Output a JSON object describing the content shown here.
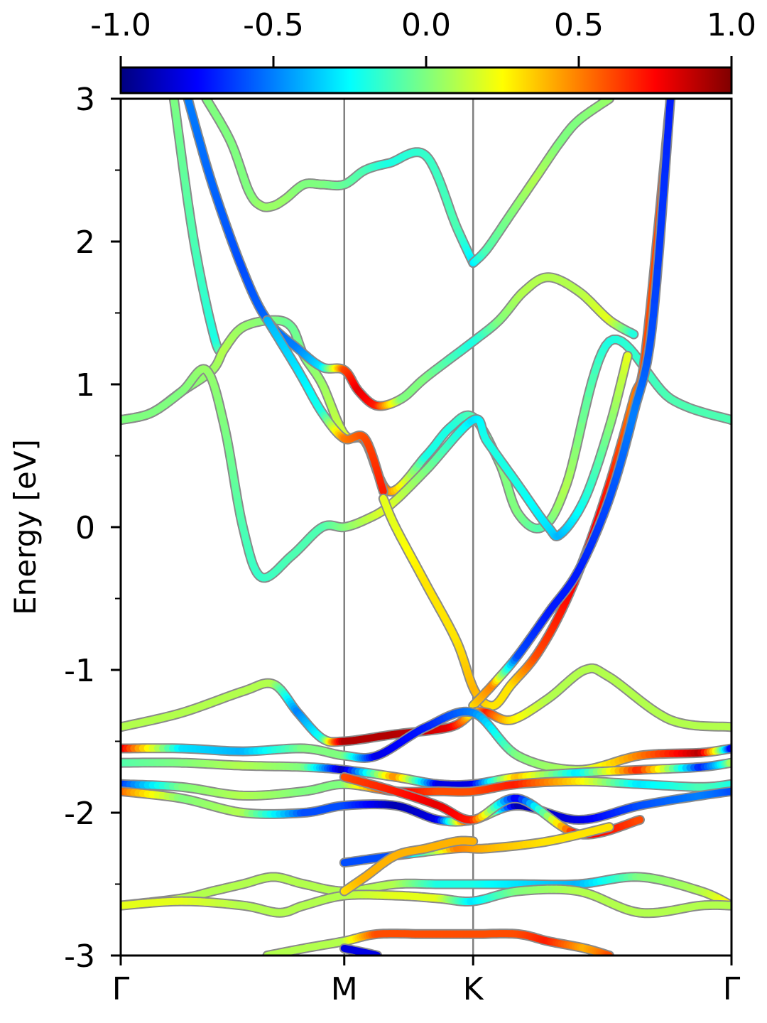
{
  "chart_data": {
    "type": "line",
    "ylabel": "Energy [eV]",
    "xlabel": "",
    "title": "",
    "ylim": [
      -3,
      3
    ],
    "y_ticks": [
      "-3",
      "-2",
      "-1",
      "0",
      "1",
      "2",
      "3"
    ],
    "x_ticks": [
      {
        "label": "Γ",
        "k": 0.0
      },
      {
        "label": "M",
        "k": 0.366
      },
      {
        "label": "K",
        "k": 0.577
      },
      {
        "label": "Γ",
        "k": 1.0
      }
    ],
    "vertical_lines_at_k": [
      0.366,
      0.577
    ],
    "colorbar": {
      "colormap": "jet",
      "range": [
        -1.0,
        1.0
      ],
      "ticks": [
        "-1.0",
        "-0.5",
        "0.0",
        "0.5",
        "1.0"
      ],
      "position": "top"
    },
    "color_stops": [
      "#00007f",
      "#0000ff",
      "#007fff",
      "#00ffff",
      "#7fff7f",
      "#ffff00",
      "#ff7f00",
      "#ff0000",
      "#7f0000"
    ],
    "series": [
      {
        "x": [
          0.087,
          0.12,
          0.155,
          0.17
        ],
        "y": [
          3.0,
          2.0,
          1.3,
          1.25
        ],
        "c": [
          0.0,
          -0.1,
          -0.2,
          0.1
        ]
      },
      {
        "x": [
          0.0,
          0.05,
          0.1,
          0.15,
          0.17,
          0.2,
          0.25,
          0.28,
          0.3,
          0.33,
          0.366,
          0.4,
          0.44,
          0.5,
          0.54,
          0.577,
          0.62,
          0.65,
          0.69,
          0.73,
          0.8,
          0.9,
          1.0
        ],
        "y": [
          0.75,
          0.8,
          0.95,
          1.1,
          1.25,
          1.4,
          1.45,
          1.4,
          1.2,
          1.0,
          0.65,
          0.6,
          0.25,
          0.5,
          0.7,
          0.77,
          0.45,
          0.1,
          0.0,
          0.3,
          1.3,
          0.9,
          0.75
        ],
        "c": [
          0.0,
          0.0,
          0.0,
          0.05,
          0.1,
          0.05,
          0.0,
          -0.05,
          0.0,
          0.05,
          0.15,
          0.6,
          0.5,
          -0.2,
          -0.2,
          -0.1,
          0.0,
          0.0,
          -0.1,
          0.1,
          -0.2,
          -0.1,
          -0.1
        ]
      },
      {
        "x": [
          0.0,
          0.05,
          0.1,
          0.14,
          0.17,
          0.2,
          0.23,
          0.28,
          0.33,
          0.366,
          0.4,
          0.44,
          0.5,
          0.577,
          0.6,
          0.65,
          0.7,
          0.72,
          0.76,
          0.8,
          0.83
        ],
        "y": [
          0.75,
          0.8,
          0.95,
          1.1,
          0.7,
          0.0,
          -0.35,
          -0.2,
          0.0,
          0.0,
          0.05,
          0.15,
          0.4,
          0.75,
          0.6,
          0.3,
          0.0,
          -0.05,
          0.2,
          0.7,
          1.2
        ],
        "c": [
          0.0,
          0.0,
          0.0,
          0.05,
          0.0,
          -0.1,
          -0.15,
          -0.1,
          -0.1,
          0.0,
          0.1,
          0.2,
          0.0,
          -0.3,
          -0.2,
          -0.2,
          -0.3,
          -0.4,
          -0.2,
          0.0,
          0.2
        ]
      },
      {
        "x": [
          0.14,
          0.18,
          0.21,
          0.23,
          0.25,
          0.27,
          0.3,
          0.33,
          0.366,
          0.4,
          0.44,
          0.5,
          0.55,
          0.577
        ],
        "y": [
          3.0,
          2.7,
          2.35,
          2.25,
          2.25,
          2.3,
          2.4,
          2.4,
          2.4,
          2.5,
          2.55,
          2.6,
          2.1,
          1.85
        ],
        "c": [
          0.0,
          0.0,
          0.0,
          0.05,
          0.05,
          0.05,
          0.0,
          0.0,
          -0.05,
          -0.1,
          -0.2,
          -0.15,
          -0.1,
          -0.3
        ]
      },
      {
        "x": [
          0.577,
          0.6,
          0.64,
          0.68,
          0.72,
          0.75,
          0.8
        ],
        "y": [
          1.85,
          1.95,
          2.2,
          2.45,
          2.7,
          2.85,
          3.0
        ],
        "c": [
          -0.3,
          -0.1,
          0.0,
          0.1,
          0.0,
          0.0,
          0.05
        ]
      },
      {
        "x": [
          0.11,
          0.15,
          0.2,
          0.24,
          0.29,
          0.33,
          0.366,
          0.39,
          0.42,
          0.46,
          0.5,
          0.577,
          0.62,
          0.66,
          0.7,
          0.75,
          0.8,
          0.84
        ],
        "y": [
          3.0,
          2.4,
          1.8,
          1.45,
          1.25,
          1.12,
          1.1,
          0.95,
          0.85,
          0.9,
          1.05,
          1.3,
          1.45,
          1.65,
          1.75,
          1.65,
          1.45,
          1.35
        ],
        "c": [
          -0.5,
          -0.55,
          -0.6,
          -0.55,
          -0.5,
          -0.3,
          0.6,
          0.8,
          0.7,
          0.0,
          0.0,
          -0.2,
          0.0,
          0.1,
          0.1,
          0.1,
          0.2,
          -0.2
        ]
      },
      {
        "x": [
          0.24,
          0.29,
          0.33,
          0.366,
          0.4,
          0.43
        ],
        "y": [
          1.45,
          1.1,
          0.8,
          0.62,
          0.62,
          0.25
        ],
        "c": [
          -0.4,
          -0.3,
          -0.2,
          0.5,
          0.6,
          0.7
        ]
      },
      {
        "x": [
          0.43,
          0.45,
          0.5,
          0.55,
          0.58,
          0.61,
          0.64,
          0.68,
          0.72,
          0.76,
          0.8,
          0.84,
          0.86,
          0.9
        ],
        "y": [
          0.2,
          0.0,
          -0.4,
          -0.8,
          -1.15,
          -1.25,
          -1.1,
          -0.9,
          -0.6,
          -0.2,
          0.3,
          0.9,
          1.25,
          3.0
        ],
        "c": [
          0.2,
          0.2,
          0.3,
          0.3,
          0.4,
          0.3,
          0.3,
          0.6,
          0.7,
          0.8,
          0.7,
          0.5,
          0.6,
          0.6
        ]
      },
      {
        "x": [
          0.577,
          0.61,
          0.65,
          0.7,
          0.75,
          0.8,
          0.84,
          0.87,
          0.9
        ],
        "y": [
          -1.25,
          -1.1,
          -0.9,
          -0.6,
          -0.3,
          0.2,
          0.8,
          1.4,
          3.0
        ],
        "c": [
          0.3,
          0.5,
          -0.6,
          -0.7,
          -0.7,
          -0.6,
          -0.5,
          -0.6,
          -0.7
        ]
      },
      {
        "x": [
          0.0,
          0.1,
          0.2,
          0.25,
          0.29,
          0.33,
          0.366,
          0.45,
          0.54,
          0.577,
          0.6,
          0.64,
          0.7,
          0.76,
          0.8,
          0.9,
          1.0
        ],
        "y": [
          -1.4,
          -1.3,
          -1.15,
          -1.1,
          -1.3,
          -1.48,
          -1.5,
          -1.45,
          -1.4,
          -1.3,
          -1.3,
          -1.35,
          -1.2,
          -1.0,
          -1.05,
          -1.35,
          -1.4
        ],
        "c": [
          0.1,
          0.1,
          0.1,
          0.1,
          -0.5,
          -0.2,
          0.9,
          0.9,
          0.8,
          0.2,
          0.7,
          0.3,
          0.1,
          0.1,
          0.1,
          0.1,
          0.1
        ]
      },
      {
        "x": [
          0.0,
          0.1,
          0.2,
          0.3,
          0.366,
          0.42,
          0.5,
          0.577,
          0.65,
          0.75,
          0.85,
          0.95,
          1.0
        ],
        "y": [
          -1.55,
          -1.55,
          -1.57,
          -1.55,
          -1.6,
          -1.6,
          -1.4,
          -1.3,
          -1.6,
          -1.7,
          -1.6,
          -1.58,
          -1.55
        ],
        "c": [
          0.9,
          -0.3,
          -0.4,
          0.0,
          0.0,
          -0.8,
          -0.7,
          -0.5,
          0.0,
          0.1,
          0.5,
          0.9,
          -0.8
        ]
      },
      {
        "x": [
          0.0,
          0.1,
          0.2,
          0.3,
          0.366,
          0.45,
          0.52,
          0.577,
          0.65,
          0.75,
          0.85,
          0.95,
          1.0
        ],
        "y": [
          -1.65,
          -1.65,
          -1.67,
          -1.68,
          -1.7,
          -1.75,
          -1.8,
          -1.8,
          -1.75,
          -1.72,
          -1.7,
          -1.68,
          -1.65
        ],
        "c": [
          -0.1,
          0.0,
          0.1,
          0.0,
          -0.9,
          0.5,
          -0.8,
          -0.8,
          0.4,
          -0.3,
          0.7,
          -0.7,
          0.1
        ]
      },
      {
        "x": [
          0.0,
          0.1,
          0.2,
          0.3,
          0.366,
          0.45,
          0.52,
          0.577,
          0.65,
          0.75,
          0.85,
          0.95,
          1.0
        ],
        "y": [
          -1.8,
          -1.82,
          -1.88,
          -1.85,
          -1.8,
          -1.85,
          -1.85,
          -1.85,
          -1.8,
          -1.78,
          -1.8,
          -1.82,
          -1.8
        ],
        "c": [
          -0.7,
          0.0,
          0.1,
          0.0,
          0.0,
          0.8,
          0.6,
          0.6,
          0.7,
          0.3,
          -0.3,
          -0.1,
          -0.2
        ]
      },
      {
        "x": [
          0.0,
          0.1,
          0.2,
          0.3,
          0.366,
          0.45,
          0.52,
          0.577,
          0.65,
          0.75,
          0.85,
          0.95,
          1.0
        ],
        "y": [
          -1.85,
          -1.9,
          -2.0,
          -2.0,
          -1.95,
          -1.95,
          -2.05,
          -2.05,
          -1.95,
          -2.05,
          -1.95,
          -1.88,
          -1.85
        ],
        "c": [
          0.6,
          0.0,
          0.1,
          -0.6,
          -0.6,
          -0.9,
          -0.8,
          0.9,
          -0.9,
          -0.8,
          -0.6,
          -0.5,
          -0.6
        ]
      },
      {
        "x": [
          0.366,
          0.45,
          0.52,
          0.577,
          0.65,
          0.75,
          0.85
        ],
        "y": [
          -1.75,
          -1.85,
          -1.95,
          -2.05,
          -1.9,
          -2.15,
          -2.05
        ],
        "c": [
          0.6,
          0.7,
          0.8,
          0.7,
          -0.8,
          0.8,
          0.6
        ]
      },
      {
        "x": [
          0.366,
          0.45,
          0.55,
          0.6,
          0.7,
          0.8
        ],
        "y": [
          -2.35,
          -2.3,
          -2.25,
          -2.25,
          -2.2,
          -2.1
        ],
        "c": [
          -0.6,
          -0.6,
          0.5,
          0.4,
          0.3,
          0.3
        ]
      },
      {
        "x": [
          0.0,
          0.1,
          0.15,
          0.2,
          0.25,
          0.3,
          0.366,
          0.45,
          0.52,
          0.577,
          0.65,
          0.75,
          0.85,
          0.95,
          1.0
        ],
        "y": [
          -2.65,
          -2.6,
          -2.55,
          -2.5,
          -2.45,
          -2.5,
          -2.55,
          -2.5,
          -2.5,
          -2.5,
          -2.5,
          -2.5,
          -2.45,
          -2.55,
          -2.65
        ],
        "c": [
          0.4,
          0.1,
          0.1,
          0.1,
          0.1,
          0.1,
          0.1,
          0.1,
          -0.2,
          -0.2,
          -0.3,
          -0.4,
          0.0,
          0.1,
          0.3
        ]
      },
      {
        "x": [
          0.0,
          0.1,
          0.2,
          0.26,
          0.3,
          0.366,
          0.45,
          0.52,
          0.577,
          0.65,
          0.75,
          0.85,
          0.95,
          1.0
        ],
        "y": [
          -2.65,
          -2.62,
          -2.65,
          -2.7,
          -2.65,
          -2.58,
          -2.58,
          -2.6,
          -2.62,
          -2.55,
          -2.55,
          -2.7,
          -2.65,
          -2.65
        ],
        "c": [
          0.2,
          0.2,
          0.1,
          0.1,
          0.1,
          0.1,
          0.2,
          0.2,
          -0.3,
          0.0,
          0.1,
          0.1,
          0.1,
          0.1
        ]
      },
      {
        "x": [
          0.366,
          0.4,
          0.45,
          0.5,
          0.55,
          0.577
        ],
        "y": [
          -2.55,
          -2.45,
          -2.3,
          -2.25,
          -2.2,
          -2.2
        ],
        "c": [
          0.3,
          0.4,
          0.4,
          0.4,
          0.4,
          0.4
        ]
      },
      {
        "x": [
          0.24,
          0.3,
          0.366,
          0.42,
          0.5,
          0.577,
          0.65,
          0.7,
          0.76,
          0.8
        ],
        "y": [
          -3.0,
          -2.95,
          -2.9,
          -2.85,
          -2.85,
          -2.85,
          -2.85,
          -2.9,
          -2.95,
          -3.0
        ],
        "c": [
          0.1,
          0.1,
          0.1,
          0.6,
          0.6,
          0.6,
          0.6,
          0.7,
          0.4,
          0.6
        ]
      },
      {
        "x": [
          0.366,
          0.4,
          0.42
        ],
        "y": [
          -2.95,
          -2.98,
          -3.0
        ],
        "c": [
          -0.8,
          -0.8,
          -0.8
        ]
      }
    ]
  }
}
